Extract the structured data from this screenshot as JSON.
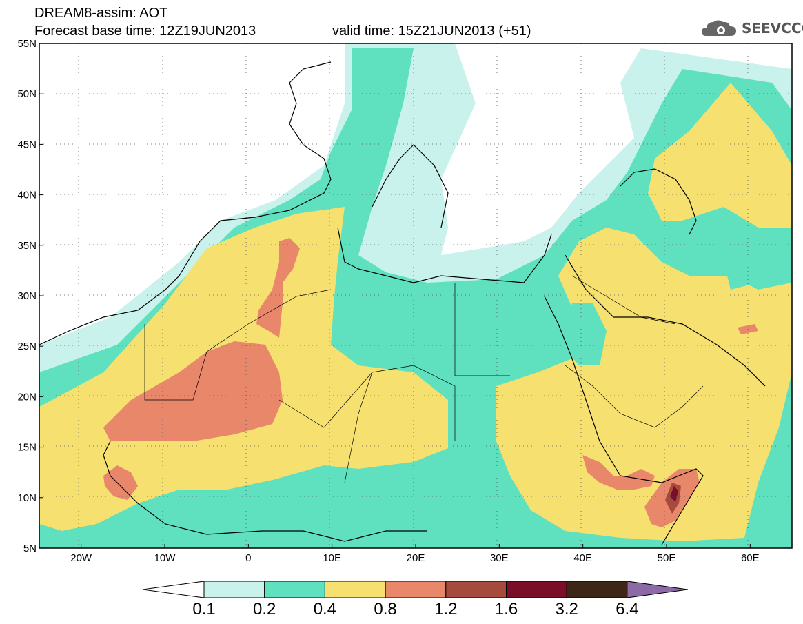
{
  "header": {
    "title": "DREAM8-assim: AOT",
    "base_time": "Forecast base time: 12Z19JUN2013",
    "valid_time": "valid time: 15Z21JUN2013 (+51)",
    "logo_text": "SEEVCCC",
    "logo_icon": "cloud-gear-icon"
  },
  "map": {
    "lat_labels": [
      "55N",
      "50N",
      "45N",
      "40N",
      "35N",
      "30N",
      "25N",
      "20N",
      "15N",
      "10N",
      "5N"
    ],
    "lon_labels": [
      "20W",
      "10W",
      "0",
      "10E",
      "20E",
      "30E",
      "40E",
      "50E",
      "60E"
    ],
    "lat_range": [
      5,
      55
    ],
    "lon_range": [
      -25,
      65
    ],
    "grid": "dotted"
  },
  "colorbar": {
    "labels": [
      "0.1",
      "0.2",
      "0.4",
      "0.8",
      "1.2",
      "1.6",
      "3.2",
      "6.4"
    ],
    "colors": [
      "#c9f2ec",
      "#5fe0bf",
      "#f5e070",
      "#e8876a",
      "#a54a3c",
      "#7a0d28",
      "#3d2616",
      "#8c6aa8"
    ],
    "under_color": "#ffffff"
  },
  "colors": {
    "c1": "#c9f2ec",
    "c2": "#5fe0bf",
    "c3": "#f5e070",
    "c4": "#e8876a",
    "c5": "#a54a3c",
    "c6": "#7a0d28",
    "coast": "#000000"
  }
}
